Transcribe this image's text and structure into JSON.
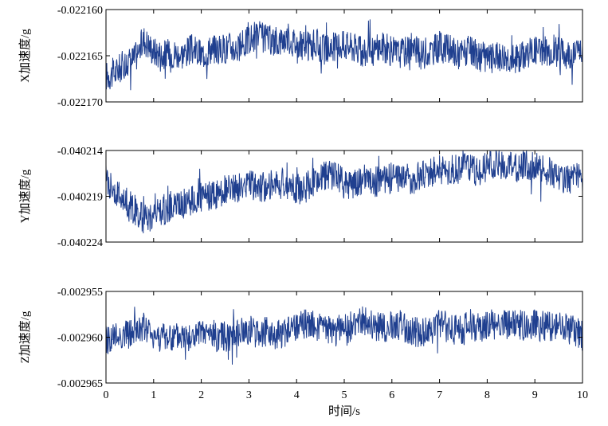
{
  "chart_data": [
    {
      "type": "line",
      "ylabel": "X加速度/g",
      "ylim": [
        -0.02217,
        -0.02216
      ],
      "yticks": [
        "-0.022160",
        "-0.022165",
        "-0.022170"
      ],
      "yticks_values": [
        -0.02216,
        -0.022165,
        -0.02217
      ],
      "xlim": [
        0,
        10
      ],
      "series_color": "#1f3f8f",
      "x": [
        0,
        0.2,
        0.4,
        0.6,
        0.8,
        1,
        1.2,
        1.4,
        1.6,
        1.8,
        2,
        2.2,
        2.4,
        2.6,
        2.8,
        3,
        3.2,
        3.4,
        3.6,
        3.8,
        4,
        4.2,
        4.4,
        4.6,
        4.8,
        5,
        5.2,
        5.4,
        5.6,
        5.8,
        6,
        6.2,
        6.4,
        6.6,
        6.8,
        7,
        7.2,
        7.4,
        7.6,
        7.8,
        8,
        8.2,
        8.4,
        8.6,
        8.8,
        9,
        9.2,
        9.4,
        9.6,
        9.8,
        10
      ],
      "y": [
        -0.0221672,
        -0.0221668,
        -0.0221658,
        -0.0221653,
        -0.0221632,
        -0.0221645,
        -0.0221649,
        -0.0221647,
        -0.0221648,
        -0.0221643,
        -0.0221649,
        -0.0221642,
        -0.0221644,
        -0.022164,
        -0.0221643,
        -0.0221632,
        -0.0221628,
        -0.0221633,
        -0.0221635,
        -0.022163,
        -0.0221637,
        -0.0221641,
        -0.0221637,
        -0.0221644,
        -0.022164,
        -0.0221638,
        -0.0221641,
        -0.0221648,
        -0.0221645,
        -0.0221639,
        -0.0221646,
        -0.0221647,
        -0.0221641,
        -0.0221649,
        -0.0221645,
        -0.022164,
        -0.0221644,
        -0.0221648,
        -0.0221645,
        -0.022165,
        -0.0221653,
        -0.0221651,
        -0.022165,
        -0.0221654,
        -0.0221647,
        -0.0221643,
        -0.0221645,
        -0.0221644,
        -0.0221648,
        -0.0221647,
        -0.0221643
      ]
    },
    {
      "type": "line",
      "ylabel": "Y加速度/g",
      "ylim": [
        -0.040224,
        -0.040214
      ],
      "yticks": [
        "-0.040214",
        "-0.040219",
        "-0.040224"
      ],
      "yticks_values": [
        -0.040214,
        -0.040219,
        -0.040224
      ],
      "xlim": [
        0,
        10
      ],
      "series_color": "#1f3f8f",
      "x": [
        0,
        0.2,
        0.4,
        0.6,
        0.8,
        1,
        1.2,
        1.4,
        1.6,
        1.8,
        2,
        2.2,
        2.4,
        2.6,
        2.8,
        3,
        3.2,
        3.4,
        3.6,
        3.8,
        4,
        4.2,
        4.4,
        4.6,
        4.8,
        5,
        5.2,
        5.4,
        5.6,
        5.8,
        6,
        6.2,
        6.4,
        6.6,
        6.8,
        7,
        7.2,
        7.4,
        7.6,
        7.8,
        8,
        8.2,
        8.4,
        8.6,
        8.8,
        9,
        9.2,
        9.4,
        9.6,
        9.8,
        10
      ],
      "y": [
        -0.040217,
        -0.0402185,
        -0.0402195,
        -0.0402205,
        -0.0402215,
        -0.040221,
        -0.0402205,
        -0.04022,
        -0.0402198,
        -0.0402195,
        -0.0402192,
        -0.040219,
        -0.0402185,
        -0.0402182,
        -0.040218,
        -0.0402176,
        -0.040218,
        -0.0402178,
        -0.0402175,
        -0.0402178,
        -0.0402182,
        -0.0402178,
        -0.0402175,
        -0.0402168,
        -0.0402165,
        -0.0402178,
        -0.0402175,
        -0.0402172,
        -0.0402175,
        -0.0402172,
        -0.040217,
        -0.0402168,
        -0.0402172,
        -0.0402168,
        -0.0402165,
        -0.040216,
        -0.0402162,
        -0.040216,
        -0.0402158,
        -0.0402162,
        -0.0402158,
        -0.0402156,
        -0.0402158,
        -0.040216,
        -0.0402155,
        -0.0402158,
        -0.0402162,
        -0.0402165,
        -0.040217,
        -0.0402172,
        -0.0402168
      ]
    },
    {
      "type": "line",
      "ylabel": "Z加速度/g",
      "ylim": [
        -0.002965,
        -0.002955
      ],
      "yticks": [
        "-0.002955",
        "-0.002960",
        "-0.002965"
      ],
      "yticks_values": [
        -0.002955,
        -0.00296,
        -0.002965
      ],
      "xlim": [
        0,
        10
      ],
      "xticks": [
        "0",
        "1",
        "2",
        "3",
        "4",
        "5",
        "6",
        "7",
        "8",
        "9",
        "10"
      ],
      "xticks_values": [
        0,
        1,
        2,
        3,
        4,
        5,
        6,
        7,
        8,
        9,
        10
      ],
      "xlabel": "时间/s",
      "series_color": "#1f3f8f",
      "x": [
        0,
        0.2,
        0.4,
        0.6,
        0.8,
        1,
        1.2,
        1.4,
        1.6,
        1.8,
        2,
        2.2,
        2.4,
        2.6,
        2.8,
        3,
        3.2,
        3.4,
        3.6,
        3.8,
        4,
        4.2,
        4.4,
        4.6,
        4.8,
        5,
        5.2,
        5.4,
        5.6,
        5.8,
        6,
        6.2,
        6.4,
        6.6,
        6.8,
        7,
        7.2,
        7.4,
        7.6,
        7.8,
        8,
        8.2,
        8.4,
        8.6,
        8.8,
        9,
        9.2,
        9.4,
        9.6,
        9.8,
        10
      ],
      "y": [
        -0.0029602,
        -0.00296,
        -0.0029597,
        -0.0029595,
        -0.002959,
        -0.0029598,
        -0.00296,
        -0.0029602,
        -0.0029599,
        -0.0029601,
        -0.0029598,
        -0.0029597,
        -0.00296,
        -0.0029598,
        -0.0029596,
        -0.0029592,
        -0.0029594,
        -0.0029595,
        -0.0029597,
        -0.0029594,
        -0.002959,
        -0.0029585,
        -0.0029588,
        -0.0029592,
        -0.002959,
        -0.0029592,
        -0.0029587,
        -0.0029583,
        -0.0029588,
        -0.002959,
        -0.0029588,
        -0.0029587,
        -0.0029593,
        -0.0029596,
        -0.0029592,
        -0.0029585,
        -0.002959,
        -0.0029592,
        -0.0029589,
        -0.002959,
        -0.0029587,
        -0.0029585,
        -0.0029588,
        -0.0029586,
        -0.0029588,
        -0.0029586,
        -0.0029589,
        -0.0029588,
        -0.002959,
        -0.0029592,
        -0.0029598
      ]
    }
  ]
}
